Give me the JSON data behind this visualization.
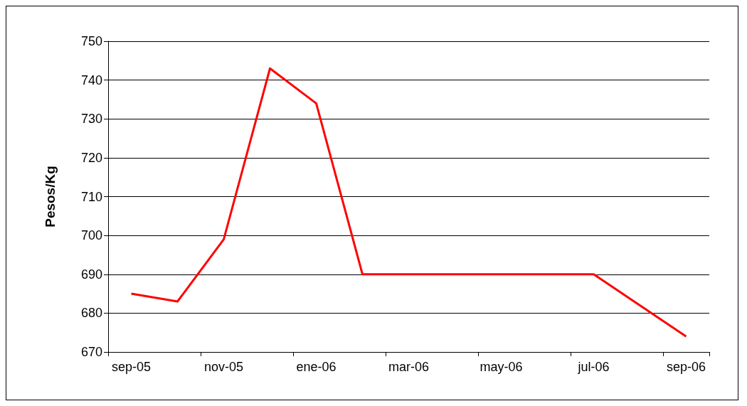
{
  "chart_data": {
    "type": "line",
    "ylabel": "Pesos/Kg",
    "categories": [
      "sep-05",
      null,
      "nov-05",
      null,
      "ene-06",
      null,
      "mar-06",
      null,
      "may-06",
      null,
      "jul-06",
      null,
      "sep-06"
    ],
    "series": [
      {
        "color": "#ff0000",
        "values": [
          685,
          683,
          699,
          743,
          734,
          690,
          690,
          690,
          690,
          690,
          690,
          682,
          674
        ]
      }
    ],
    "ylim": [
      670,
      750
    ],
    "yticks": [
      670,
      680,
      690,
      700,
      710,
      720,
      730,
      740,
      750
    ],
    "grid": "y",
    "marker": "none",
    "line_style": "solid"
  }
}
